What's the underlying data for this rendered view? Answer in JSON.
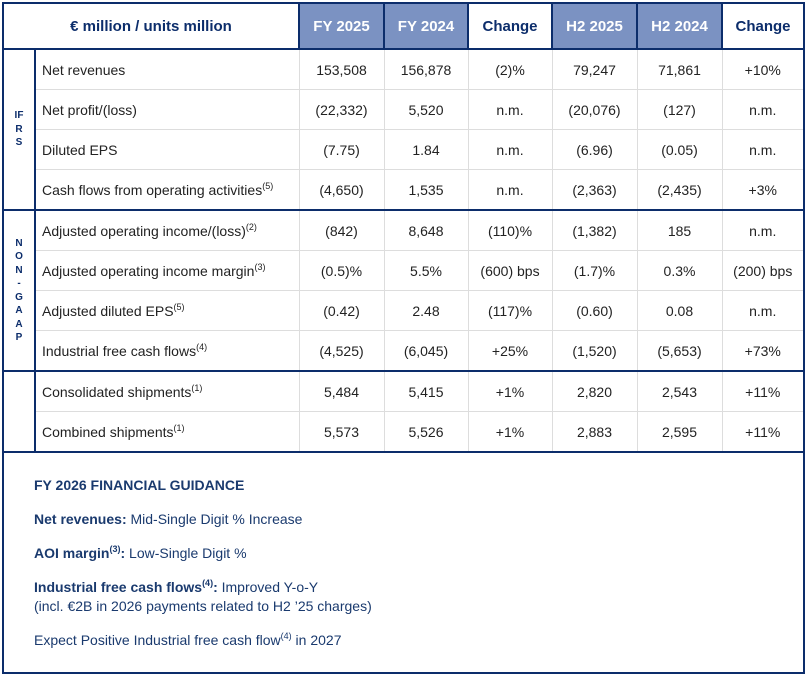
{
  "header": {
    "title": "€ million / units million",
    "cols": [
      "FY 2025",
      "FY 2024",
      "Change",
      "H2 2025",
      "H2 2024",
      "Change"
    ]
  },
  "colors": {
    "border": "#0c2d6b",
    "header_highlight": "#7b92c2",
    "guidance_text": "#1a3a6e"
  },
  "groups": [
    {
      "label": "IFRS",
      "letters": [
        "I",
        "F",
        "R",
        "S"
      ],
      "rows": [
        {
          "label": "Net revenues",
          "note": "",
          "values": [
            "153,508",
            "156,878",
            "(2)%",
            "79,247",
            "71,861",
            "+10%"
          ]
        },
        {
          "label": "Net profit/(loss)",
          "note": "",
          "values": [
            "(22,332)",
            "5,520",
            "n.m.",
            "(20,076)",
            "(127)",
            "n.m."
          ]
        },
        {
          "label": "Diluted EPS",
          "note": "",
          "values": [
            "(7.75)",
            "1.84",
            "n.m.",
            "(6.96)",
            "(0.05)",
            "n.m."
          ]
        },
        {
          "label": "Cash flows from operating activities",
          "note": "(5)",
          "values": [
            "(4,650)",
            "1,535",
            "n.m.",
            "(2,363)",
            "(2,435)",
            "+3%"
          ]
        }
      ]
    },
    {
      "label": "NON-GAAP",
      "letters": [
        "N",
        "O",
        "N",
        "-",
        "G",
        "A",
        "A",
        "P"
      ],
      "rows": [
        {
          "label": "Adjusted operating income/(loss)",
          "note": "(2)",
          "values": [
            "(842)",
            "8,648",
            "(110)%",
            "(1,382)",
            "185",
            "n.m."
          ]
        },
        {
          "label": "Adjusted operating income margin",
          "note": "(3)",
          "values": [
            "(0.5)%",
            "5.5%",
            "(600) bps",
            "(1.7)%",
            "0.3%",
            "(200) bps"
          ]
        },
        {
          "label": "Adjusted diluted EPS",
          "note": "(5)",
          "values": [
            "(0.42)",
            "2.48",
            "(117)%",
            "(0.60)",
            "0.08",
            "n.m."
          ]
        },
        {
          "label": "Industrial free cash flows",
          "note": "(4)",
          "values": [
            "(4,525)",
            "(6,045)",
            "+25%",
            "(1,520)",
            "(5,653)",
            "+73%"
          ]
        }
      ]
    },
    {
      "label": "",
      "letters": [],
      "rows": [
        {
          "label": "Consolidated shipments",
          "note": "(1)",
          "values": [
            "5,484",
            "5,415",
            "+1%",
            "2,820",
            "2,543",
            "+11%"
          ]
        },
        {
          "label": "Combined shipments",
          "note": "(1)",
          "values": [
            "5,573",
            "5,526",
            "+1%",
            "2,883",
            "2,595",
            "+11%"
          ]
        }
      ]
    }
  ],
  "guidance": {
    "title": "FY 2026 FINANCIAL GUIDANCE",
    "items": [
      {
        "bold": "Net revenues",
        "note": "",
        "text": " Mid-Single Digit % Increase"
      },
      {
        "bold": "AOI margin",
        "note": "(3)",
        "text": " Low-Single Digit %"
      },
      {
        "bold": "Industrial free cash flows",
        "note": "(4)",
        "text": " Improved Y-o-Y",
        "text2": "(incl. €2B in 2026 payments related to H2 ’25 charges)"
      }
    ],
    "footer": {
      "pre": "Expect Positive Industrial free cash flow",
      "note": "(4)",
      "post": " in 2027"
    }
  }
}
